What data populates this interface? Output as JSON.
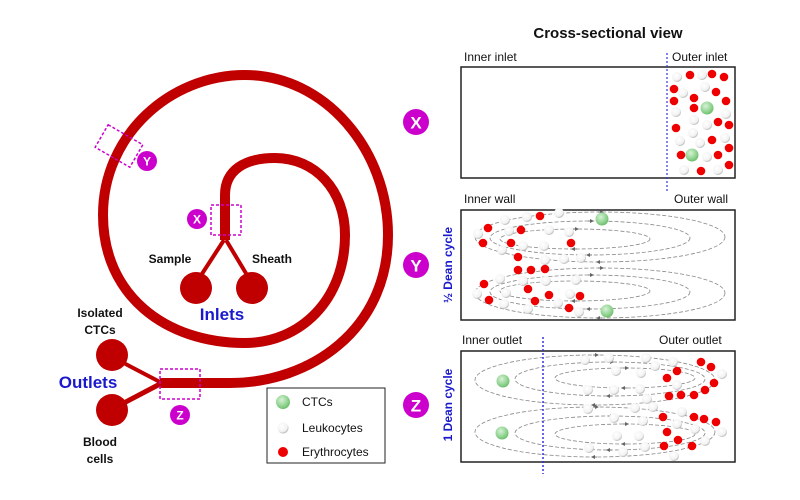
{
  "colors": {
    "channel": "#c00000",
    "marker": "#cc00cc",
    "label_blue": "#1a1acc",
    "ctc": "#8fd28f",
    "leukocyte": "#ffffff",
    "erythrocyte": "#ee0000"
  },
  "device": {
    "sample_label": "Sample",
    "sheath_label": "Sheath",
    "inlets_label": "Inlets",
    "isolated_label_1": "Isolated",
    "isolated_label_2": "CTCs",
    "outlets_label": "Outlets",
    "blood_label_1": "Blood",
    "blood_label_2": "cells",
    "markers": {
      "x": "X",
      "y": "Y",
      "z": "Z"
    }
  },
  "legend": {
    "items": [
      {
        "label": "CTCs",
        "icon": "ctc-cell"
      },
      {
        "label": "Leukocytes",
        "icon": "leukocyte-cell"
      },
      {
        "label": "Erythrocytes",
        "icon": "erythrocyte-cell"
      }
    ]
  },
  "cross_section": {
    "title": "Cross-sectional view",
    "panels": [
      {
        "badge": "X",
        "left_label": "Inner inlet",
        "right_label": "Outer inlet",
        "side_label": ""
      },
      {
        "badge": "Y",
        "left_label": "Inner wall",
        "right_label": "Outer wall",
        "side_label": "½ Dean cycle"
      },
      {
        "badge": "Z",
        "left_label": "Inner outlet",
        "right_label": "Outer outlet",
        "side_label": "1 Dean cycle"
      }
    ]
  }
}
